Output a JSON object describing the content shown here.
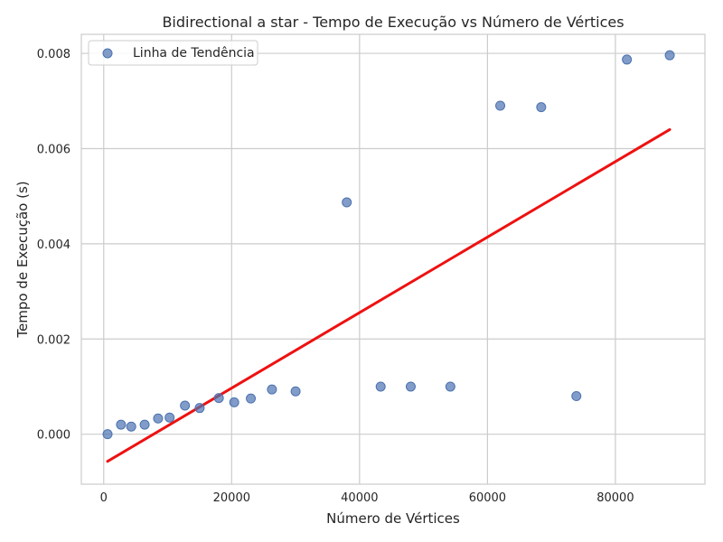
{
  "chart_data": {
    "type": "scatter",
    "title": "Bidirectional a star - Tempo de Execução vs Número de Vértices",
    "xlabel": "Número de Vértices",
    "ylabel": "Tempo de Execução (s)",
    "xlim": [
      -3500,
      94000
    ],
    "ylim": [
      -0.00105,
      0.0084
    ],
    "xticks": [
      0,
      20000,
      40000,
      60000,
      80000
    ],
    "xtick_labels": [
      "0",
      "20000",
      "40000",
      "60000",
      "80000"
    ],
    "yticks": [
      0.0,
      0.002,
      0.004,
      0.006,
      0.008
    ],
    "ytick_labels": [
      "0.000",
      "0.002",
      "0.004",
      "0.006",
      "0.008"
    ],
    "grid": true,
    "legend_position": "top-left",
    "legend": [
      "Linha de Tendência"
    ],
    "series": [
      {
        "name": "Linha de Tendência",
        "kind": "scatter",
        "color": "#4c72b0",
        "x": [
          600,
          2700,
          4300,
          6400,
          8500,
          10300,
          12700,
          15000,
          18000,
          20400,
          23000,
          26300,
          30000,
          38000,
          43300,
          48000,
          54200,
          62000,
          68400,
          73900,
          81800,
          88500
        ],
        "y": [
          0.0,
          0.0002,
          0.00016,
          0.0002,
          0.00033,
          0.00035,
          0.0006,
          0.00055,
          0.00076,
          0.00067,
          0.00075,
          0.00094,
          0.0009,
          0.00487,
          0.001,
          0.001,
          0.001,
          0.0069,
          0.00687,
          0.0008,
          0.00787,
          0.00796
        ]
      },
      {
        "kind": "line",
        "color": "#ee1111",
        "x": [
          600,
          88500
        ],
        "y": [
          -0.00057,
          0.0064
        ]
      }
    ]
  }
}
